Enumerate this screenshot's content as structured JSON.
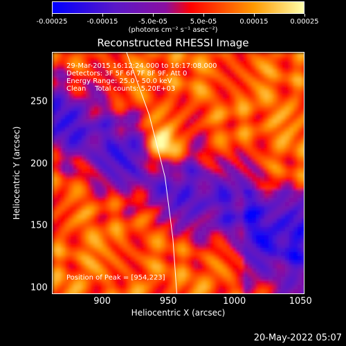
{
  "colorbar": {
    "tick_labels": [
      "-0.00025",
      "-0.00015",
      "-5.0e-05",
      "5.0e-05",
      "0.00015",
      "0.00025"
    ],
    "tick_values": [
      -0.00025,
      -0.00015,
      -5e-05,
      5e-05,
      0.00015,
      0.00025
    ],
    "range": [
      -0.00025,
      0.00025
    ],
    "units": "(photons cm⁻² s⁻¹ asec⁻²)",
    "colors": [
      "#0000ff",
      "#5a18c8",
      "#8a0fa0",
      "#ff0000",
      "#ff9900",
      "#ffffaa"
    ]
  },
  "title": "Reconstructed RHESSI Image",
  "annotations": {
    "line1": "29-Mar-2015 16:12:24.000 to 16:17:08.000",
    "line2": "Detectors: 3F 5F 6F 7F 8F 9F, Att 0",
    "line3": "Energy Range: 25.0 - 50.0 keV",
    "line4": "Clean    Total counts: 5.20E+03",
    "peak": "Position of Peak = [954,223]"
  },
  "chart_data": {
    "type": "heatmap",
    "title": "Reconstructed RHESSI Image",
    "xlabel": "Heliocentric X (arcsec)",
    "ylabel": "Heliocentric Y (arcsec)",
    "xlim": [
      862,
      1053
    ],
    "ylim": [
      95,
      290
    ],
    "x_ticks": [
      900,
      950,
      1000,
      1050
    ],
    "y_ticks": [
      100,
      150,
      200,
      250
    ],
    "x_tick_labels": [
      "900",
      "950",
      "1000",
      "1050"
    ],
    "y_tick_labels": [
      "100",
      "150",
      "200",
      "250"
    ],
    "peak": [
      954,
      223
    ],
    "limb_curve": [
      [
        918,
        290
      ],
      [
        935,
        240
      ],
      [
        947,
        190
      ],
      [
        953,
        140
      ],
      [
        956,
        95
      ]
    ]
  },
  "footer": "20-May-2022 05:07"
}
